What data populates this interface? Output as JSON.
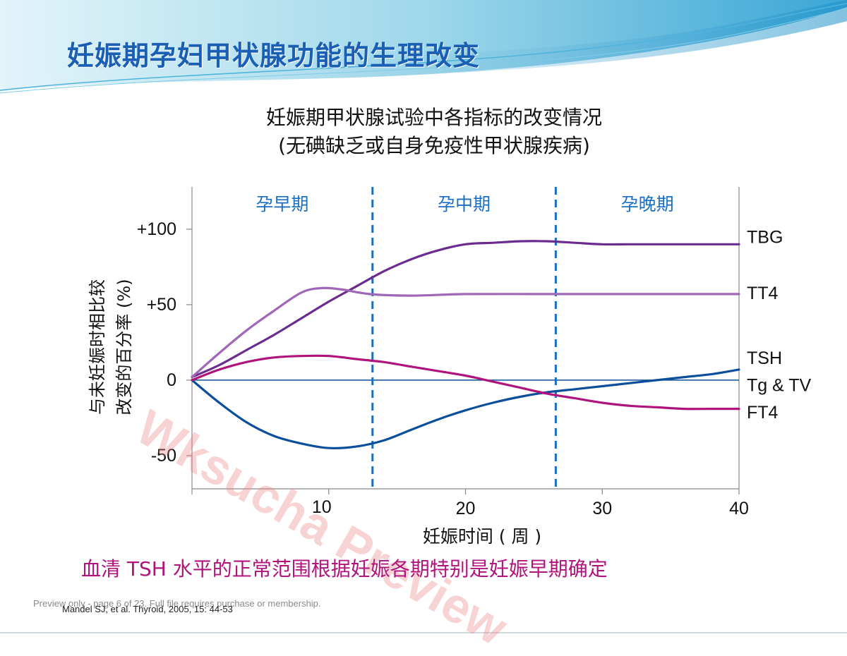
{
  "slide": {
    "title": "妊娠期孕妇甲状腺功能的生理改变",
    "conclusion": "血清 TSH 水平的正常范围根据妊娠各期特别是妊娠早期确定",
    "citation": "Mandel SJ, et al.  Thyroid, 2005, 15: 44-53",
    "preview_note": "Preview only - page 6 of 23. Full file requires purchase or membership.",
    "watermark": "Wksucha Preview"
  },
  "colors": {
    "title": "#1a5fb4",
    "conclusion": "#b0147c",
    "divider": "#1a6fc0",
    "TBG": "#6a2c91",
    "TT4": "#a066b8",
    "TSH": "#0b4f9c",
    "FT4": "#b0147c",
    "zero_line": "#0b4f9c"
  },
  "chart_data": {
    "type": "line",
    "title_line1": "妊娠期甲状腺试验中各指标的改变情况",
    "title_line2": "(无碘缺乏或自身免疫性甲状腺疾病)",
    "xlabel": "妊娠时间 ( 周 )",
    "ylabel_line1": "与未妊娠时相比较",
    "ylabel_line2": "改变的百分率 (%)",
    "xlim": [
      0,
      40
    ],
    "ylim": [
      -72,
      128
    ],
    "x_ticks": [
      10,
      20,
      30,
      40
    ],
    "x_tick_labels": [
      "10",
      "20",
      "30",
      "40"
    ],
    "y_ticks": [
      100,
      50,
      0,
      -50
    ],
    "y_tick_labels": [
      "+100",
      "+50",
      "0",
      "-50"
    ],
    "trimester_dividers": [
      13.2,
      26.6
    ],
    "trimesters": [
      {
        "label": "孕早期",
        "x": 6.6
      },
      {
        "label": "孕中期",
        "x": 19.9
      },
      {
        "label": "孕晚期",
        "x": 33.3
      }
    ],
    "series": [
      {
        "name": "TBG",
        "x": [
          0,
          2,
          4,
          6,
          8,
          10,
          12,
          14,
          16,
          18,
          20,
          22,
          24,
          26,
          28,
          30,
          32,
          34,
          36,
          38,
          40
        ],
        "values": [
          2,
          10,
          20,
          30,
          41,
          52,
          62,
          72,
          80,
          86,
          90,
          91,
          92,
          92,
          91,
          90,
          90,
          90,
          90,
          90,
          90
        ],
        "label_y": 95
      },
      {
        "name": "TT4",
        "x": [
          0,
          2,
          4,
          6,
          8,
          9.5,
          11,
          13,
          16,
          20,
          25,
          30,
          35,
          38,
          40
        ],
        "values": [
          2,
          18,
          33,
          46,
          58,
          61,
          60,
          57,
          56,
          57,
          57,
          57,
          57,
          57,
          57
        ],
        "label_y": 58
      },
      {
        "name": "TSH",
        "x": [
          0,
          2,
          4,
          6,
          8,
          10,
          12,
          14,
          16,
          18,
          20,
          22,
          24,
          26,
          28,
          30,
          32,
          34,
          36,
          38,
          40
        ],
        "values": [
          0,
          -15,
          -28,
          -37,
          -42,
          -45,
          -44,
          -40,
          -33,
          -26,
          -20,
          -15,
          -11,
          -8,
          -6,
          -4,
          -2,
          0,
          2,
          4,
          7
        ],
        "label_y": 15
      },
      {
        "name": "Tg & TV",
        "x": [],
        "values": [],
        "label_y": -3
      },
      {
        "name": "FT4",
        "x": [
          0,
          2,
          4,
          6,
          8,
          10,
          12,
          14,
          16,
          18,
          20,
          22,
          24,
          26,
          28,
          30,
          32,
          34,
          36,
          38,
          40
        ],
        "values": [
          0,
          7,
          12,
          15,
          16,
          16,
          14,
          12,
          9,
          6,
          3,
          -1,
          -5,
          -9,
          -12,
          -15,
          -17,
          -18,
          -19,
          -19,
          -19
        ],
        "label_y": -21
      }
    ]
  }
}
